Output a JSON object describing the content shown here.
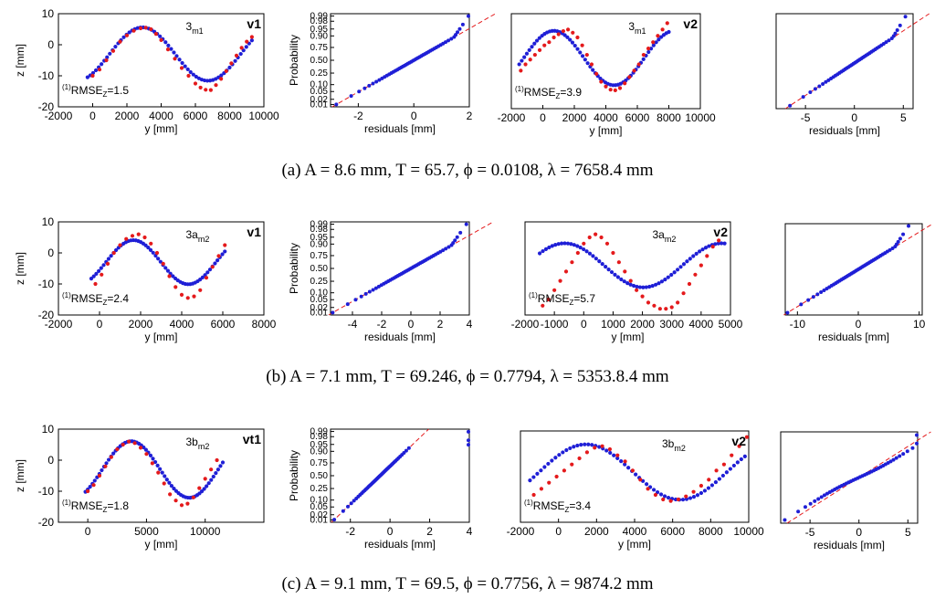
{
  "chart_data": [
    {
      "row": "a",
      "caption": "(a)  A = 8.6 mm, T = 65.7, ϕ = 0.0108, λ = 7658.4 mm",
      "panels": [
        {
          "type": "scatter",
          "kind": "profile",
          "xlabel": "y [mm]",
          "ylabel": "z [mm]",
          "xlim": [
            -2000,
            10000
          ],
          "ylim": [
            -20,
            10
          ],
          "xticks": [
            "-2000",
            "0",
            "2000",
            "4000",
            "6000",
            "8000",
            "10000"
          ],
          "yticks": [
            "10",
            "0",
            "-10",
            "-20"
          ],
          "id_main": "3",
          "id_sub": "m1",
          "view": "v1",
          "rmse_pre": "(1)",
          "rmse_main": "RMSE",
          "rmse_sub": "Z",
          "rmse_val": "=1.5",
          "fit": {
            "A": 8.6,
            "lambda": 7658.4,
            "offset": -3.0,
            "x_peak": 2900,
            "x0": -300,
            "x1": 9300,
            "n": 60
          },
          "measured": {
            "x": [
              0,
              400,
              800,
              1200,
              1600,
              2000,
              2400,
              2800,
              3100,
              3400,
              3700,
              4000,
              4400,
              4800,
              5200,
              5600,
              6000,
              6300,
              6600,
              6900,
              7200,
              7500,
              7800,
              8100,
              8400,
              8700,
              9000,
              9300
            ],
            "y": [
              -10,
              -8,
              -5,
              -2,
              1,
              3,
              4.5,
              5.3,
              5.5,
              5,
              3.5,
              1.5,
              -1.5,
              -4.5,
              -7.5,
              -10,
              -12.5,
              -13.8,
              -14.5,
              -14.6,
              -13,
              -11,
              -8.5,
              -6,
              -3.5,
              -1,
              1,
              2.5
            ]
          }
        },
        {
          "type": "scatter",
          "kind": "probability",
          "xlabel": "residuals [mm]",
          "ylabel": "Probability",
          "xlim": [
            -3,
            2
          ],
          "xticks": [
            "-2",
            "0",
            "2"
          ],
          "pticks": [
            "0.99",
            "0.98",
            "0.95",
            "0.90",
            "0.75",
            "0.50",
            "0.25",
            "0.10",
            "0.05",
            "0.02",
            "0.01"
          ],
          "n": 50,
          "mu": 0.0,
          "sigma": 1.2,
          "tail": "up"
        },
        {
          "type": "scatter",
          "kind": "profile",
          "xlabel": "y [mm]",
          "ylabel": "",
          "xlim": [
            -2000,
            10000
          ],
          "ylim": [
            -20,
            10
          ],
          "hide_y": true,
          "xticks": [
            "-2000",
            "0",
            "2000",
            "4000",
            "6000",
            "8000",
            "10000"
          ],
          "yticks": [],
          "id_main": "3",
          "id_sub": "m1",
          "view": "v2",
          "rmse_pre": "(1)",
          "rmse_main": "RMSE",
          "rmse_sub": "Z",
          "rmse_val": "=3.9",
          "fit": {
            "A": 8.6,
            "lambda": 7658.4,
            "offset": -4.0,
            "x_peak": 700,
            "x0": -1500,
            "x1": 8000,
            "n": 60
          },
          "measured": {
            "x": [
              -1400,
              -1100,
              -800,
              -500,
              -200,
              100,
              400,
              700,
              1000,
              1300,
              1600,
              1900,
              2200,
              2500,
              2800,
              3100,
              3400,
              3700,
              4000,
              4300,
              4600,
              4900,
              5200,
              5500,
              5800,
              6100,
              6400,
              6700,
              7000,
              7300,
              7600,
              7900
            ],
            "y": [
              -8,
              -6,
              -4.5,
              -3,
              -1.5,
              0,
              1,
              2.5,
              3.5,
              4.5,
              5,
              4,
              2.5,
              0,
              -3,
              -6,
              -9,
              -11.5,
              -13,
              -14,
              -14.2,
              -13.5,
              -12,
              -10,
              -8,
              -6,
              -3,
              -1,
              1,
              3,
              5,
              7
            ]
          }
        },
        {
          "type": "scatter",
          "kind": "probability",
          "xlabel": "residuals [mm]",
          "ylabel": "",
          "xlim": [
            -8,
            6
          ],
          "hide_y": true,
          "xticks": [
            "-5",
            "0",
            "5"
          ],
          "pticks": [],
          "n": 46,
          "mu": 0.3,
          "sigma": 3.0,
          "tail": "up"
        }
      ]
    },
    {
      "row": "b",
      "caption": "(b)  A = 7.1 mm, T = 69.246, ϕ = 0.7794, λ = 5353.8.4 mm",
      "panels": [
        {
          "type": "scatter",
          "kind": "profile",
          "xlabel": "y [mm]",
          "ylabel": "z [mm]",
          "xlim": [
            -2000,
            8000
          ],
          "ylim": [
            -20,
            10
          ],
          "xticks": [
            "-2000",
            "0",
            "2000",
            "4000",
            "6000",
            "8000"
          ],
          "yticks": [
            "10",
            "0",
            "-10",
            "-20"
          ],
          "id_main": "3a",
          "id_sub": "m2",
          "view": "v1",
          "rmse_pre": "(1)",
          "rmse_main": "RMSE",
          "rmse_sub": "Z",
          "rmse_val": "=2.4",
          "fit": {
            "A": 7.1,
            "lambda": 5353.8,
            "offset": -3.0,
            "x_peak": 1650,
            "x0": -400,
            "x1": 6100,
            "n": 55
          },
          "measured": {
            "x": [
              -200,
              100,
              400,
              700,
              1000,
              1300,
              1600,
              1900,
              2200,
              2500,
              2800,
              3100,
              3400,
              3700,
              4000,
              4300,
              4600,
              4900,
              5200,
              5500,
              5800,
              6100
            ],
            "y": [
              -10,
              -7,
              -3.5,
              0,
              2.5,
              4.5,
              5.5,
              6,
              5,
              3,
              0,
              -3.5,
              -7.5,
              -11,
              -13.5,
              -14.5,
              -14,
              -12,
              -8,
              -4.5,
              -1,
              2.5
            ]
          }
        },
        {
          "type": "scatter",
          "kind": "probability",
          "xlabel": "residuals [mm]",
          "ylabel": "Probability",
          "xlim": [
            -5.5,
            4
          ],
          "xticks": [
            "-4",
            "-2",
            "0",
            "2",
            "4"
          ],
          "pticks": [
            "0.99",
            "0.98",
            "0.95",
            "0.90",
            "0.75",
            "0.50",
            "0.25",
            "0.10",
            "0.05",
            "0.02",
            "0.01"
          ],
          "n": 50,
          "mu": 0.0,
          "sigma": 2.3,
          "tail": "up"
        },
        {
          "type": "scatter",
          "kind": "profile",
          "xlabel": "y [mm]",
          "ylabel": "",
          "xlim": [
            -2000,
            5000
          ],
          "ylim": [
            -20,
            10
          ],
          "hide_y": true,
          "xticks": [
            "-2000",
            "-1000",
            "0",
            "1000",
            "2000",
            "3000",
            "4000",
            "5000"
          ],
          "yticks": [],
          "id_main": "3a",
          "id_sub": "m2",
          "view": "v2",
          "rmse_pre": "(1)",
          "rmse_main": "RMSE",
          "rmse_sub": "Z",
          "rmse_val": "=5.7",
          "fit": {
            "A": 7.1,
            "lambda": 5353.8,
            "offset": -4.0,
            "x_peak": -650,
            "x0": -1500,
            "x1": 4800,
            "n": 60
          },
          "measured": {
            "x": [
              -1400,
              -1200,
              -1000,
              -800,
              -600,
              -400,
              -200,
              0,
              200,
              400,
              600,
              800,
              1000,
              1200,
              1400,
              1600,
              1800,
              2000,
              2200,
              2400,
              2600,
              2800,
              3000,
              3200,
              3400,
              3600,
              3800,
              4000,
              4200,
              4400,
              4600
            ],
            "y": [
              -17,
              -15,
              -12,
              -9,
              -6,
              -3,
              0,
              3,
              5,
              6,
              5,
              3,
              0,
              -3,
              -6,
              -9,
              -12,
              -14,
              -16,
              -17,
              -18,
              -18,
              -17.5,
              -16,
              -13,
              -10,
              -7,
              -4,
              -1,
              2,
              4
            ]
          }
        },
        {
          "type": "scatter",
          "kind": "probability",
          "xlabel": "residuals [mm]",
          "ylabel": "",
          "xlim": [
            -12,
            10.5
          ],
          "hide_y": true,
          "xticks": [
            "-10",
            "0",
            "10"
          ],
          "pticks": [],
          "n": 50,
          "mu": 0.0,
          "sigma": 5.0,
          "tail": "up"
        }
      ]
    },
    {
      "row": "c",
      "caption": "(c)  A = 9.1 mm, T = 69.5, ϕ = 0.7756, λ = 9874.2 mm",
      "panels": [
        {
          "type": "scatter",
          "kind": "profile",
          "xlabel": "y [mm]",
          "ylabel": "z [mm]",
          "xlim": [
            -2500,
            15000
          ],
          "ylim": [
            -20,
            10
          ],
          "xticks": [
            "0",
            "5000",
            "10000"
          ],
          "xtick_values": [
            0,
            5000,
            10000
          ],
          "yticks": [
            "10",
            "0",
            "-10",
            "-20"
          ],
          "id_main": "3b",
          "id_sub": "m2",
          "view": "vt1",
          "rmse_pre": "(1)",
          "rmse_main": "RMSE",
          "rmse_sub": "Z",
          "rmse_val": "=1.8",
          "fit": {
            "A": 9.1,
            "lambda": 9874.2,
            "offset": -3.0,
            "x_peak": 3700,
            "x0": -200,
            "x1": 11500,
            "n": 60
          },
          "measured": {
            "x": [
              0,
              500,
              1000,
              1500,
              2000,
              2500,
              3000,
              3500,
              4000,
              4500,
              5000,
              5500,
              6000,
              6500,
              7000,
              7500,
              8000,
              8500,
              9000,
              9500,
              10000,
              10500,
              11000
            ],
            "y": [
              -10,
              -8,
              -5,
              -2,
              1,
              3.5,
              5,
              6,
              5.5,
              4,
              2,
              -1,
              -4,
              -7.5,
              -11,
              -13,
              -14.5,
              -14,
              -12,
              -9,
              -6,
              -3,
              0
            ]
          }
        },
        {
          "type": "scatter",
          "kind": "probability",
          "xlabel": "residuals [mm]",
          "ylabel": "Probability",
          "xlim": [
            -3,
            4
          ],
          "xticks": [
            "-2",
            "0",
            "2",
            "4"
          ],
          "pticks": [
            "0.99",
            "0.98",
            "0.95",
            "0.90",
            "0.75",
            "0.50",
            "0.25",
            "0.10",
            "0.05",
            "0.02",
            "0.01"
          ],
          "n": 48,
          "mu": -0.5,
          "sigma": 1.0,
          "tail": "right"
        },
        {
          "type": "scatter",
          "kind": "profile",
          "xlabel": "y [mm]",
          "ylabel": "",
          "xlim": [
            -2000,
            10000
          ],
          "ylim": [
            -20,
            10
          ],
          "hide_y": true,
          "xticks": [
            "-2000",
            "0",
            "2000",
            "4000",
            "6000",
            "8000",
            "10000"
          ],
          "yticks": [],
          "id_main": "3b",
          "id_sub": "m2",
          "view": "v2",
          "rmse_pre": "(1)",
          "rmse_main": "RMSE",
          "rmse_sub": "Z",
          "rmse_val": "=3.4",
          "fit": {
            "A": 9.1,
            "lambda": 9874.2,
            "offset": -3.5,
            "x_peak": 1450,
            "x0": -1500,
            "x1": 9800,
            "n": 60
          },
          "measured": {
            "x": [
              -1300,
              -900,
              -500,
              -100,
              300,
              700,
              1100,
              1500,
              1900,
              2300,
              2700,
              3100,
              3500,
              3900,
              4300,
              4700,
              5100,
              5500,
              5900,
              6300,
              6700,
              7100,
              7500,
              7900,
              8300,
              8700,
              9100,
              9500,
              9900
            ],
            "y": [
              -11,
              -9,
              -7,
              -5,
              -3,
              -1,
              1,
              3,
              4.5,
              5,
              4,
              2,
              0,
              -3,
              -6,
              -9,
              -11,
              -12.5,
              -13,
              -12.5,
              -11.5,
              -10,
              -8,
              -6,
              -3,
              -1,
              2,
              5,
              8
            ]
          }
        },
        {
          "type": "scatter",
          "kind": "probability",
          "xlabel": "residuals [mm]",
          "ylabel": "",
          "xlim": [
            -8,
            6
          ],
          "hide_y": true,
          "xticks": [
            "-5",
            "0",
            "5"
          ],
          "pticks": [],
          "n": 44,
          "mu": 0.0,
          "sigma": 3.0,
          "tail": "s"
        }
      ]
    }
  ],
  "colors": {
    "measured": "#e41a1c",
    "fit": "#1f1fd6",
    "refline": "#e41a1c",
    "axis": "#000000"
  }
}
